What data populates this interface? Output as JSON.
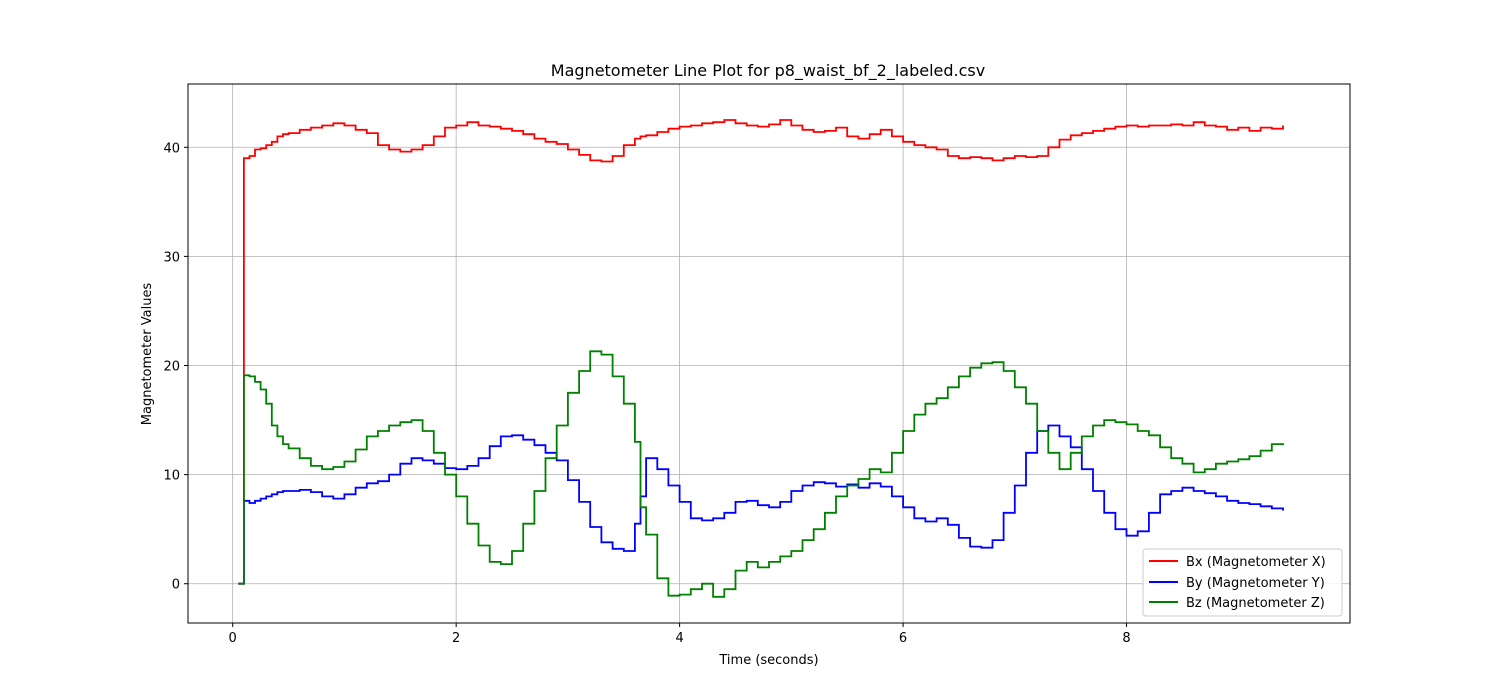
{
  "chart_data": {
    "type": "line",
    "step": true,
    "title": "Magnetometer Line Plot for p8_waist_bf_2_labeled.csv",
    "xlabel": "Time (seconds)",
    "ylabel": "Magnetometer Values",
    "xlim": [
      -0.4,
      10.0
    ],
    "ylim": [
      -3.6,
      45.8
    ],
    "xticks": [
      0,
      2,
      4,
      6,
      8
    ],
    "yticks": [
      0,
      10,
      20,
      30,
      40
    ],
    "grid": true,
    "legend_position": "bottom-right",
    "x": [
      0.05,
      0.08,
      0.1,
      0.15,
      0.2,
      0.25,
      0.3,
      0.35,
      0.4,
      0.45,
      0.5,
      0.6,
      0.7,
      0.8,
      0.9,
      1.0,
      1.1,
      1.2,
      1.3,
      1.4,
      1.5,
      1.6,
      1.7,
      1.8,
      1.9,
      2.0,
      2.1,
      2.2,
      2.3,
      2.4,
      2.5,
      2.6,
      2.7,
      2.8,
      2.9,
      3.0,
      3.1,
      3.2,
      3.3,
      3.4,
      3.5,
      3.6,
      3.65,
      3.7,
      3.8,
      3.9,
      4.0,
      4.1,
      4.2,
      4.3,
      4.4,
      4.5,
      4.6,
      4.7,
      4.8,
      4.9,
      5.0,
      5.1,
      5.2,
      5.3,
      5.4,
      5.5,
      5.6,
      5.7,
      5.8,
      5.9,
      6.0,
      6.1,
      6.2,
      6.3,
      6.4,
      6.5,
      6.6,
      6.7,
      6.8,
      6.9,
      7.0,
      7.1,
      7.2,
      7.3,
      7.4,
      7.5,
      7.6,
      7.7,
      7.8,
      7.9,
      8.0,
      8.1,
      8.2,
      8.3,
      8.4,
      8.5,
      8.6,
      8.7,
      8.8,
      8.9,
      9.0,
      9.1,
      9.2,
      9.3,
      9.4
    ],
    "series": [
      {
        "name": "Bx (Magnetometer X)",
        "color": "#ff0000",
        "values": [
          0,
          0,
          39,
          39.2,
          39.8,
          39.9,
          40.2,
          40.5,
          41,
          41.2,
          41.3,
          41.6,
          41.8,
          42,
          42.2,
          42,
          41.6,
          41.3,
          40.2,
          39.8,
          39.6,
          39.8,
          40.2,
          41,
          41.8,
          42,
          42.3,
          42,
          41.9,
          41.7,
          41.5,
          41.2,
          40.8,
          40.5,
          40.3,
          39.8,
          39.3,
          38.8,
          38.7,
          39.2,
          40.2,
          40.8,
          41,
          41.1,
          41.4,
          41.7,
          41.9,
          42,
          42.2,
          42.3,
          42.5,
          42.2,
          42,
          41.9,
          42.1,
          42.5,
          42,
          41.6,
          41.4,
          41.5,
          41.8,
          41,
          40.8,
          41.2,
          41.6,
          41,
          40.5,
          40.2,
          40,
          39.8,
          39.2,
          39,
          39.1,
          39,
          38.8,
          39,
          39.2,
          39.1,
          39.2,
          40,
          40.7,
          41.1,
          41.3,
          41.5,
          41.7,
          41.9,
          42,
          41.9,
          42,
          42,
          42.1,
          42,
          42.3,
          42,
          41.9,
          41.6,
          41.8,
          41.5,
          41.8,
          41.7,
          42
        ]
      },
      {
        "name": "By (Magnetometer Y)",
        "color": "#0000ff",
        "values": [
          0,
          0,
          7.6,
          7.4,
          7.6,
          7.8,
          8.0,
          8.2,
          8.4,
          8.5,
          8.5,
          8.6,
          8.4,
          8.0,
          7.8,
          8.2,
          8.8,
          9.2,
          9.4,
          10.0,
          11.0,
          11.5,
          11.3,
          11.0,
          10.6,
          10.5,
          10.8,
          11.5,
          12.6,
          13.5,
          13.6,
          13.2,
          12.7,
          12.0,
          11.3,
          9.5,
          7.5,
          5.2,
          3.8,
          3.2,
          3.0,
          5.5,
          8.0,
          11.5,
          10.5,
          9.0,
          7.5,
          6.0,
          5.8,
          6.0,
          6.5,
          7.5,
          7.6,
          7.2,
          7.0,
          7.5,
          8.5,
          9.0,
          9.3,
          9.2,
          8.9,
          9.1,
          8.8,
          9.2,
          8.9,
          8.0,
          7.0,
          6.0,
          5.7,
          6.0,
          5.4,
          4.2,
          3.4,
          3.3,
          4.0,
          6.5,
          9.0,
          12.0,
          14.0,
          14.5,
          13.5,
          12.5,
          10.5,
          8.5,
          6.5,
          5.0,
          4.4,
          4.8,
          6.5,
          8.2,
          8.5,
          8.8,
          8.5,
          8.3,
          8.0,
          7.6,
          7.4,
          7.3,
          7.1,
          6.9,
          6.7
        ]
      },
      {
        "name": "Bz (Magnetometer Z)",
        "color": "#008000",
        "values": [
          0,
          0,
          19.1,
          19.0,
          18.5,
          17.8,
          16.5,
          14.5,
          13.5,
          12.8,
          12.4,
          11.5,
          10.8,
          10.5,
          10.7,
          11.2,
          12.3,
          13.5,
          14.0,
          14.5,
          14.8,
          15.0,
          14.0,
          12.0,
          10.0,
          8.0,
          5.5,
          3.5,
          2.0,
          1.8,
          3.0,
          5.5,
          8.5,
          11.5,
          14.5,
          17.5,
          19.5,
          21.3,
          21.0,
          19.0,
          16.5,
          13.0,
          7.0,
          4.5,
          0.5,
          -1.1,
          -1.0,
          -0.5,
          0,
          -1.2,
          -0.5,
          1.2,
          2.0,
          1.5,
          2.0,
          2.5,
          3.0,
          4.0,
          5.0,
          6.5,
          8.0,
          9.0,
          9.6,
          10.5,
          10.2,
          12.0,
          14.0,
          15.5,
          16.5,
          17.0,
          18.0,
          19.0,
          19.8,
          20.2,
          20.3,
          19.5,
          18.0,
          16.5,
          14.0,
          12.0,
          10.5,
          12.0,
          13.5,
          14.5,
          15.0,
          14.8,
          14.6,
          14.0,
          13.6,
          12.5,
          11.5,
          11.0,
          10.2,
          10.5,
          11.0,
          11.2,
          11.4,
          11.7,
          12.2,
          12.8,
          12.7
        ]
      }
    ]
  }
}
